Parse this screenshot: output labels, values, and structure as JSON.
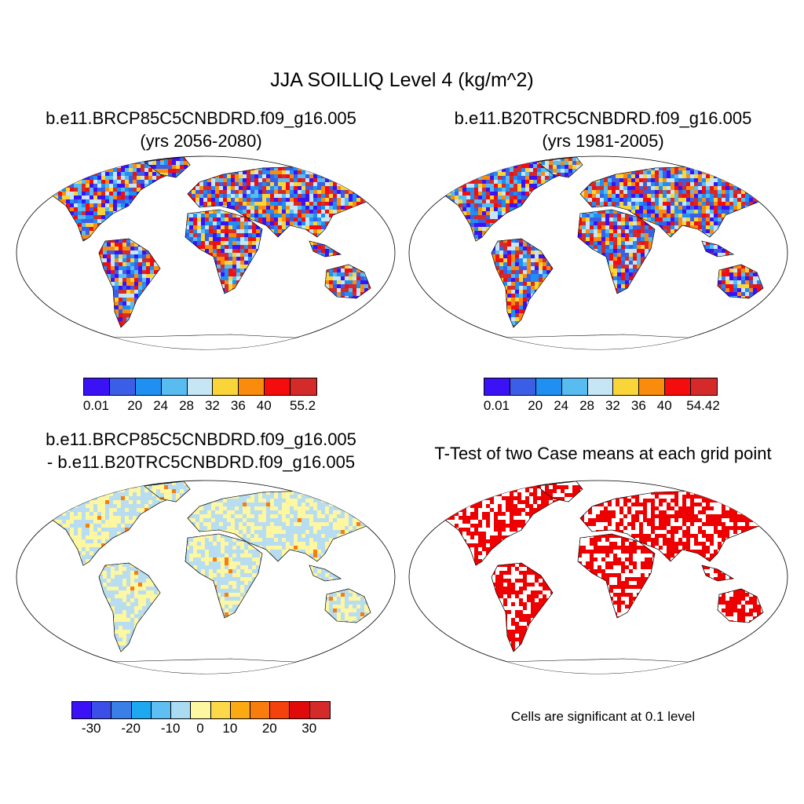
{
  "main_title": "JJA SOILLIQ Level 4 (kg/m^2)",
  "panels": [
    {
      "title_line1": "b.e11.BRCP85C5CNBDRD.f09_g16.005",
      "title_line2": "(yrs 2056-2080)"
    },
    {
      "title_line1": "b.e11.B20TRC5CNBDRD.f09_g16.005",
      "title_line2": "(yrs 1981-2005)"
    },
    {
      "title_line1": "b.e11.BRCP85C5CNBDRD.f09_g16.005",
      "title_line2": "- b.e11.B20TRC5CNBDRD.f09_g16.005"
    },
    {
      "title_line1": "T-Test of two Case means at each grid point"
    }
  ],
  "colorbars": [
    {
      "colors": [
        "#3b12f5",
        "#3a5ee6",
        "#1f8ff2",
        "#58bcf0",
        "#c7e6f5",
        "#f9d53a",
        "#f98c0c",
        "#f50c0c",
        "#d42a2a"
      ],
      "labels": [
        "0.01",
        "20",
        "24",
        "28",
        "32",
        "36",
        "40",
        "55.2"
      ]
    },
    {
      "colors": [
        "#3b12f5",
        "#3a5ee6",
        "#1f8ff2",
        "#58bcf0",
        "#c7e6f5",
        "#f9d53a",
        "#f98c0c",
        "#f50c0c",
        "#d42a2a"
      ],
      "labels": [
        "0.01",
        "20",
        "24",
        "28",
        "32",
        "36",
        "40",
        "54.42"
      ]
    },
    {
      "colors": [
        "#3b12f5",
        "#3a4ee8",
        "#3a7ee8",
        "#1ea8f2",
        "#5fbff2",
        "#a9dcf3",
        "#fdf7a2",
        "#fdd94a",
        "#fbaa12",
        "#f97d0c",
        "#f5420c",
        "#e00a0a",
        "#d42a2a"
      ],
      "labels": [
        "-30",
        "-20",
        "-10",
        "0",
        "10",
        "20",
        "30"
      ]
    }
  ],
  "ttest_note": "Cells are significant at 0.1 level",
  "map_colors": {
    "diff_land": "#b8dcf0",
    "diff_yellow": "#fdf7a2",
    "ttest_red": "#ee0000"
  }
}
